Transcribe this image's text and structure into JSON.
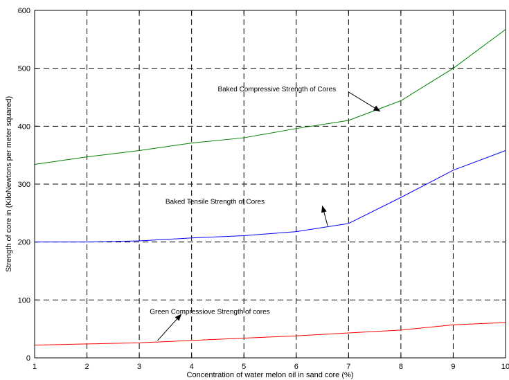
{
  "chart_data": {
    "type": "line",
    "xlabel": "Concentration of water melon oil in sand core (%)",
    "ylabel": "Strength of core in (KiloNewtons per meter squared)",
    "xlim": [
      1,
      10
    ],
    "ylim": [
      0,
      600
    ],
    "xticks": [
      1,
      2,
      3,
      4,
      5,
      6,
      7,
      8,
      9,
      10
    ],
    "yticks": [
      0,
      100,
      200,
      300,
      400,
      500,
      600
    ],
    "grid": true,
    "x": [
      1,
      2,
      3,
      4,
      5,
      6,
      7,
      8,
      9,
      10
    ],
    "series": [
      {
        "name": "Baked Compressive Strength of Cores",
        "color": "#008000",
        "values": [
          334,
          347,
          358,
          371,
          380,
          396,
          410,
          444,
          500,
          567
        ]
      },
      {
        "name": "Baked Tensile Strength of Cores",
        "color": "#0000ff",
        "values": [
          200,
          200,
          202,
          207,
          211,
          218,
          232,
          277,
          324,
          358
        ]
      },
      {
        "name": "Green Compressiove Strength of cores",
        "color": "#ff0000",
        "values": [
          22,
          24,
          26,
          30,
          34,
          38,
          43,
          48,
          57,
          61
        ]
      }
    ],
    "annotations": [
      {
        "text": "Baked Compressive Strength of Cores",
        "label_at": [
          4.5,
          460
        ],
        "arrow_from": [
          7.0,
          459
        ],
        "arrow_to": [
          7.6,
          426
        ]
      },
      {
        "text": "Baked Tensile Strength of Cores",
        "label_at": [
          3.5,
          266
        ],
        "arrow_from": [
          6.6,
          228
        ],
        "arrow_to": [
          6.5,
          262
        ]
      },
      {
        "text": "Green Compressiove Strength of cores",
        "label_at": [
          3.2,
          76
        ],
        "arrow_from": [
          3.35,
          30
        ],
        "arrow_to": [
          3.8,
          75
        ]
      }
    ]
  }
}
